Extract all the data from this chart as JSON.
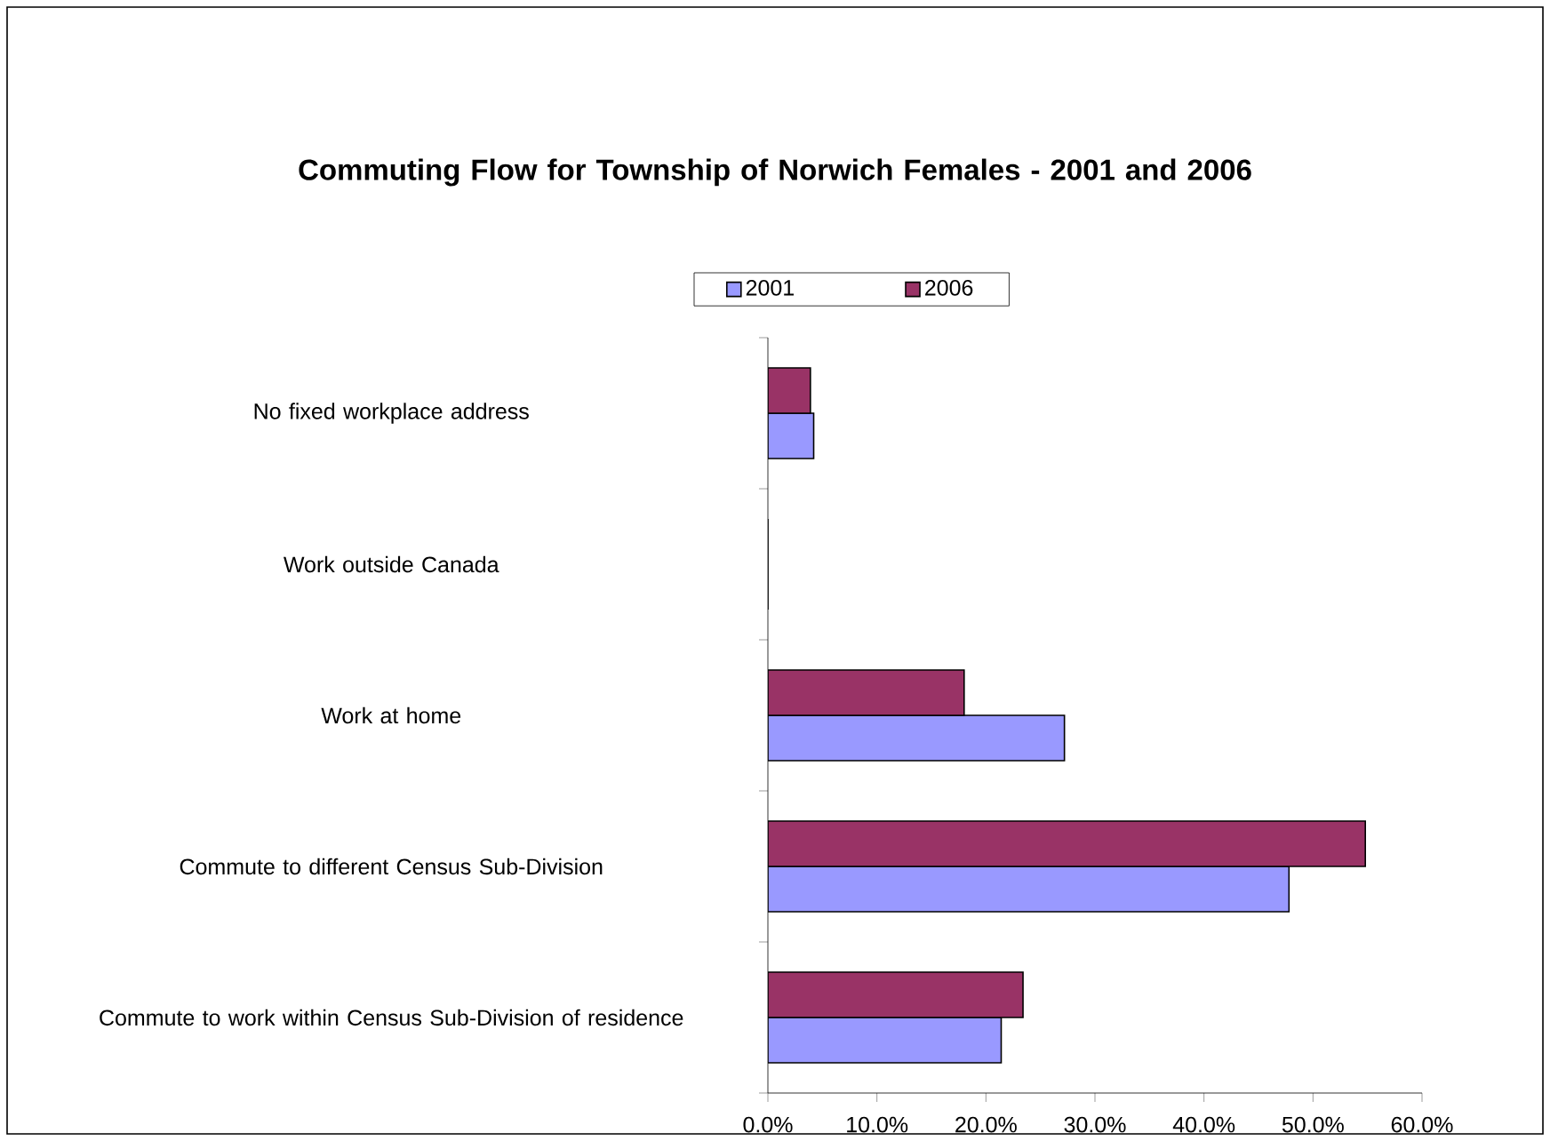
{
  "chart_data": {
    "type": "bar",
    "orientation": "horizontal",
    "title": "Commuting Flow for Township of Norwich Females - 2001 and 2006",
    "categories": [
      "No fixed workplace address",
      "Work outside Canada",
      "Work at home",
      "Commute to different Census Sub-Division",
      "Commute to work within Census Sub-Division of residence"
    ],
    "series": [
      {
        "name": "2001",
        "color": "#9999ff",
        "values": [
          4.2,
          0,
          27.2,
          47.8,
          21.4
        ]
      },
      {
        "name": "2006",
        "color": "#993366",
        "values": [
          3.9,
          0,
          18.0,
          54.8,
          23.4
        ]
      }
    ],
    "xlim": [
      0,
      60
    ],
    "xticks": [
      {
        "value": 0,
        "label": "0.0%"
      },
      {
        "value": 10,
        "label": "10.0%"
      },
      {
        "value": 20,
        "label": "20.0%"
      },
      {
        "value": 30,
        "label": "30.0%"
      },
      {
        "value": 40,
        "label": "40.0%"
      },
      {
        "value": 50,
        "label": "50.0%"
      },
      {
        "value": 60,
        "label": "60.0%"
      }
    ],
    "legend": "top",
    "grid": false
  }
}
